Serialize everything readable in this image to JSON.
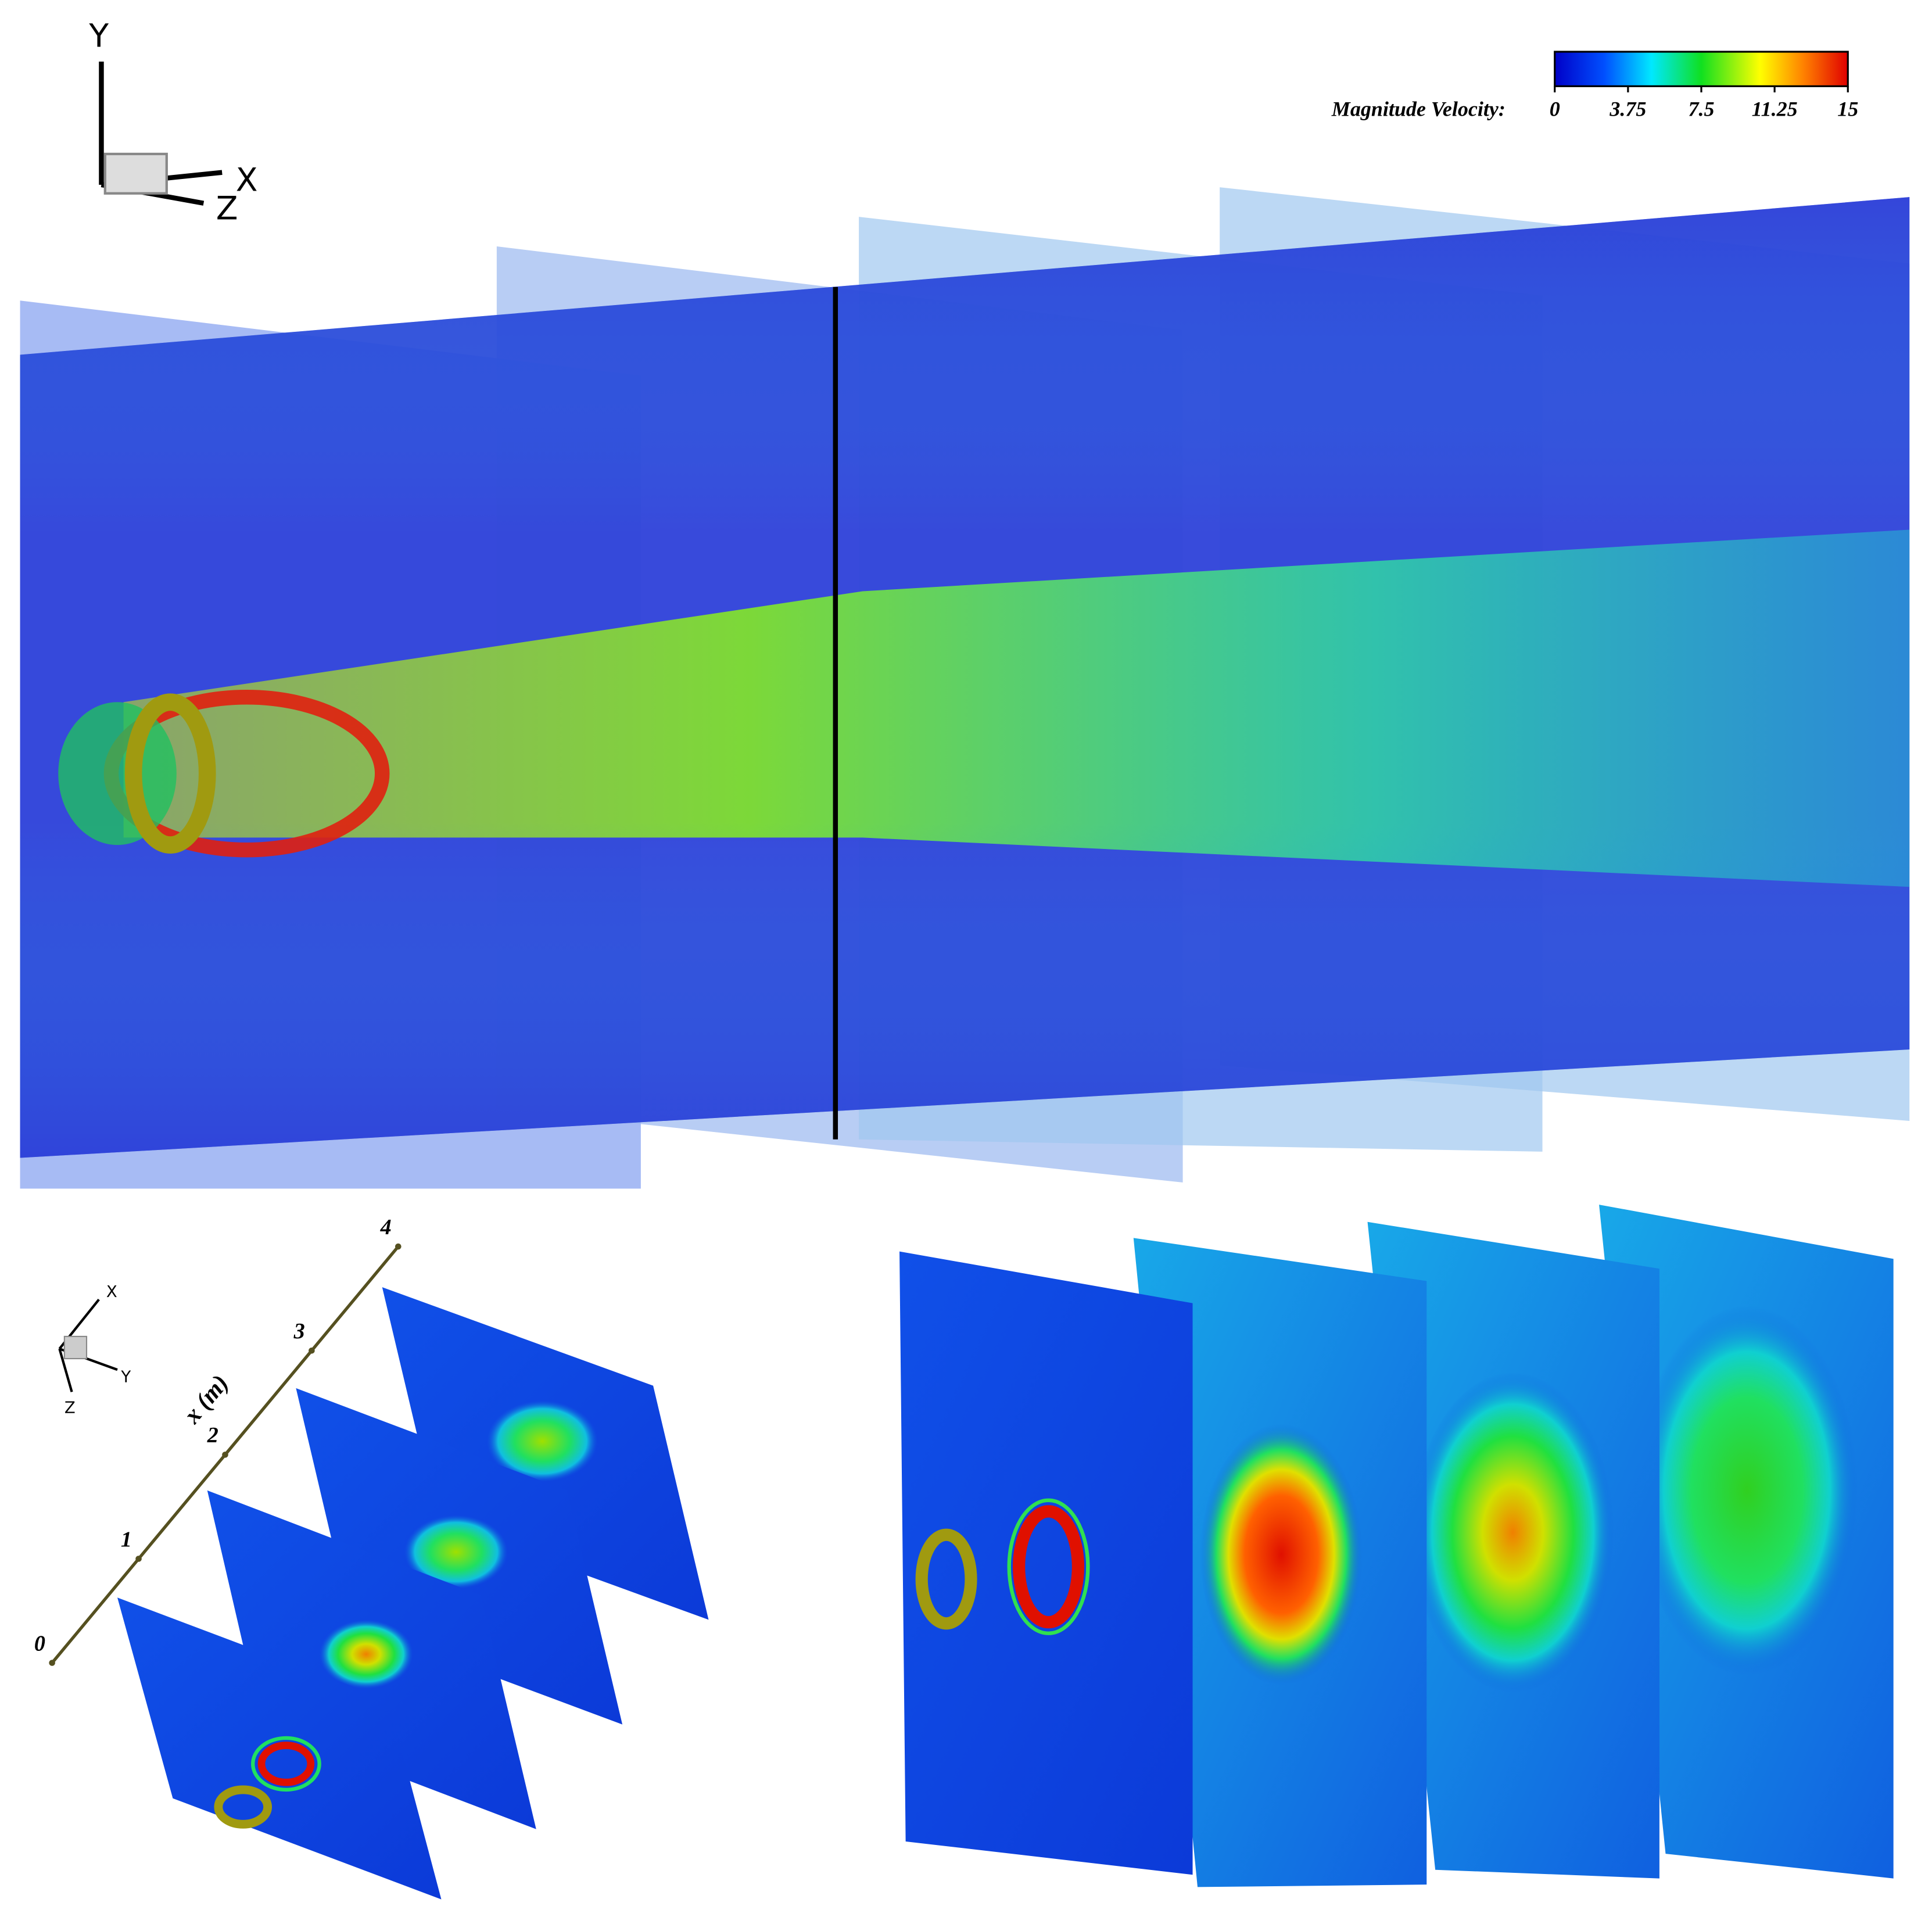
{
  "colorbar": {
    "label": "Magnitude Velocity:",
    "range": [
      0,
      15
    ],
    "ticks": [
      0,
      3.75,
      7.5,
      11.25,
      15
    ]
  },
  "top_view": {
    "axes": {
      "y": "Y",
      "x": "X",
      "z": "Z"
    }
  },
  "bottom_left": {
    "axes": {
      "x": "X",
      "y": "Y",
      "z": "Z"
    },
    "axis_label": "x (m)",
    "axis_range": [
      0,
      4
    ],
    "axis_ticks": [
      0,
      1,
      2,
      3,
      4
    ]
  }
}
